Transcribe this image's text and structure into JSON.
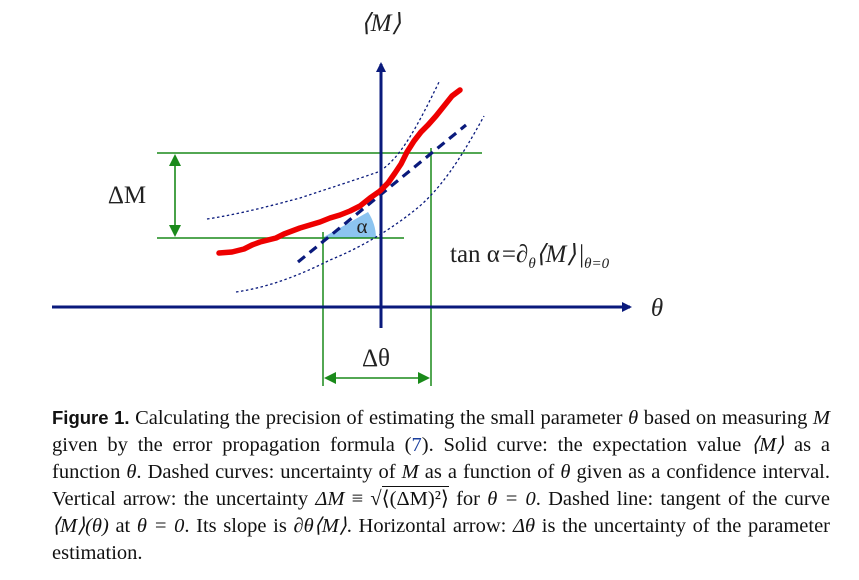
{
  "diagram": {
    "y_axis_label": "⟨M⟩",
    "x_axis_label": "θ",
    "delta_m_label": "ΔM",
    "delta_theta_label": "Δθ",
    "alpha_label": "α",
    "tan_formula": {
      "lhs": "tan α",
      "eq": "=",
      "partial": "∂",
      "sub_theta": "θ",
      "angle_m": "⟨M⟩",
      "bar": "|",
      "eval_sub": "θ=0"
    },
    "colors": {
      "axes": "#0a1a7c",
      "expectation_curve": "#ee0000",
      "confidence_curves": "#0a1a7c",
      "tangent_line": "#0a1a7c",
      "measurement_lines": "#1a8a1a",
      "angle_fill": "#8cc4f0"
    }
  },
  "caption": {
    "label": "Figure 1.",
    "t1": " Calculating the precision of estimating the small parameter ",
    "theta": "θ",
    "t2": " based on measuring ",
    "m1": "M",
    "t3": " given by the error propagation formula (",
    "ref": "7",
    "t4": "). Solid curve: the expectation value ",
    "avg_m": "⟨M⟩",
    "t5": " as a function ",
    "theta2": "θ",
    "t6": ". Dashed curves: uncertainty of ",
    "m2": "M",
    "t7": " as a function of ",
    "theta3": "θ",
    "t8": " given as a confidence interval. Vertical arrow: the uncertainty ",
    "delta_m": "ΔM",
    "t9": " ≡ ",
    "sqrt_sign": "√",
    "sqrt_body": "⟨(ΔM)²⟩",
    "t10": " for ",
    "theta_zero": "θ = 0",
    "t11": ". Dashed line: tangent of the curve ",
    "m_of_theta": "⟨M⟩(θ)",
    "t12": " at ",
    "theta_zero2": "θ = 0",
    "t13": ". Its slope is ",
    "slope": "∂θ⟨M⟩",
    "t14": ". Horizontal arrow: ",
    "delta_theta": "Δθ",
    "t15": " is the uncertainty of the parameter estimation."
  }
}
